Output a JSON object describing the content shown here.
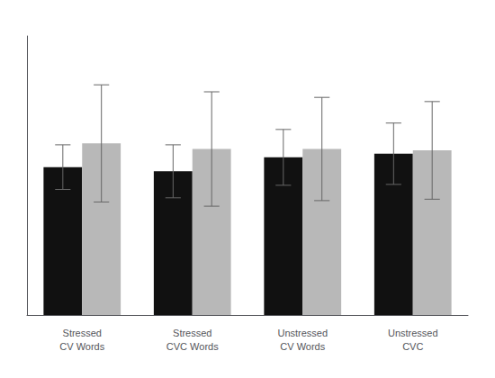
{
  "chart_data": {
    "type": "bar",
    "categories": [
      "Stressed\nCV Words",
      "Stressed\nCVC Words",
      "Unstressed\nCV Words",
      "Unstressed\nCVC"
    ],
    "series": [
      {
        "color": "#111111",
        "values": [
          530,
          515,
          565,
          578
        ],
        "errors": [
          80,
          95,
          100,
          110
        ]
      },
      {
        "color": "#b8b8b8",
        "values": [
          615,
          595,
          595,
          590
        ],
        "errors": [
          210,
          205,
          185,
          175
        ]
      }
    ],
    "ylim": [
      0,
      1000
    ],
    "grid": false,
    "tick_labels": "x"
  }
}
